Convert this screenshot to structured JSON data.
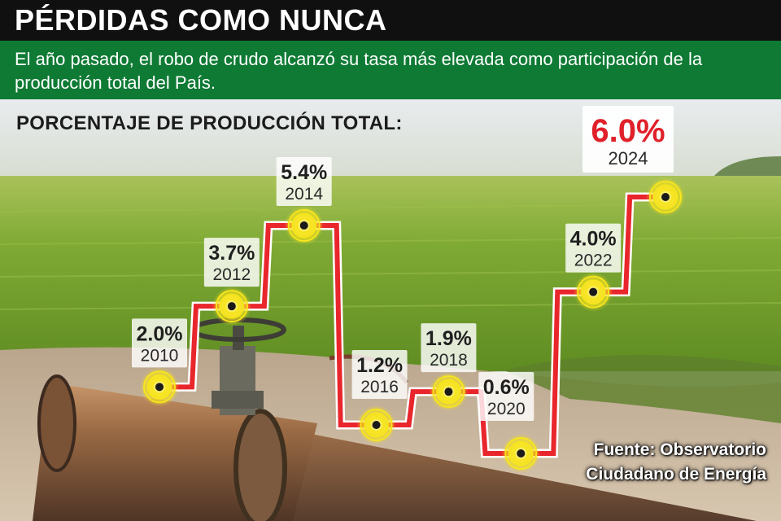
{
  "header": {
    "title": "PÉRDIDAS COMO NUNCA",
    "subtitle": "El año pasado, el robo de crudo alcanzó su tasa más elevada  como participación de la producción total del País."
  },
  "chart": {
    "series_label": "PORCENTAJE DE PRODUCCIÓN TOTAL:"
  },
  "footer": {
    "source_line1": "Fuente: Observatorio",
    "source_line2": "Ciudadano de Energía"
  },
  "colors": {
    "title_bar": "#101010",
    "subtitle_bar": "#0f7a34",
    "line": "#e8262c",
    "marker": "#f7e51e",
    "highlight_value": "#e0202a"
  },
  "chart_data": {
    "type": "line",
    "title": "PÉRDIDAS COMO NUNCA",
    "ylabel": "PORCENTAJE DE PRODUCCIÓN TOTAL:",
    "points": [
      {
        "year": "2010",
        "value": 2.0,
        "label": "2.0%"
      },
      {
        "year": "2012",
        "value": 3.7,
        "label": "3.7%"
      },
      {
        "year": "2014",
        "value": 5.4,
        "label": "5.4%"
      },
      {
        "year": "2016",
        "value": 1.2,
        "label": "1.2%"
      },
      {
        "year": "2018",
        "value": 1.9,
        "label": "1.9%"
      },
      {
        "year": "2020",
        "value": 0.6,
        "label": "0.6%"
      },
      {
        "year": "2022",
        "value": 4.0,
        "label": "4.0%"
      },
      {
        "year": "2024",
        "value": 6.0,
        "label": "6.0%",
        "highlight": true
      }
    ]
  }
}
